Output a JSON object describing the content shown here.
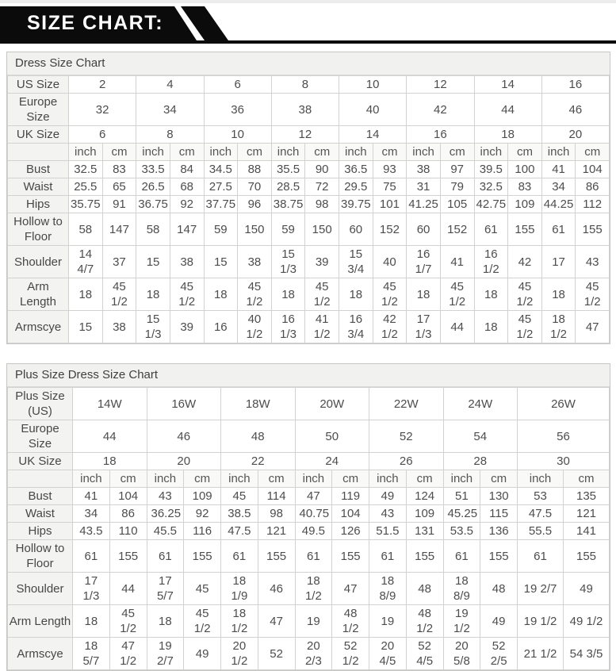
{
  "banner": {
    "title": "SIZE CHART:"
  },
  "colors": {
    "banner_bg": "#0b0b0b",
    "banner_text": "#ffffff",
    "title_bar_bg": "#f1f1ef",
    "label_cell_bg": "#f3f3f1",
    "table_border": "#d2d2d0",
    "text": "#4d4d4d"
  },
  "tables": [
    {
      "title": "Dress Size Chart",
      "units": [
        "inch",
        "cm"
      ],
      "size_rows": [
        {
          "label": "US Size",
          "values": [
            "2",
            "4",
            "6",
            "8",
            "10",
            "12",
            "14",
            "16"
          ]
        },
        {
          "label": "Europe Size",
          "values": [
            "32",
            "34",
            "36",
            "38",
            "40",
            "42",
            "44",
            "46"
          ]
        },
        {
          "label": "UK Size",
          "values": [
            "6",
            "8",
            "10",
            "12",
            "14",
            "16",
            "18",
            "20"
          ]
        }
      ],
      "measure_rows": [
        {
          "label": "Bust",
          "values": [
            "32.5",
            "83",
            "33.5",
            "84",
            "34.5",
            "88",
            "35.5",
            "90",
            "36.5",
            "93",
            "38",
            "97",
            "39.5",
            "100",
            "41",
            "104"
          ]
        },
        {
          "label": "Waist",
          "values": [
            "25.5",
            "65",
            "26.5",
            "68",
            "27.5",
            "70",
            "28.5",
            "72",
            "29.5",
            "75",
            "31",
            "79",
            "32.5",
            "83",
            "34",
            "86"
          ]
        },
        {
          "label": "Hips",
          "values": [
            "35.75",
            "91",
            "36.75",
            "92",
            "37.75",
            "96",
            "38.75",
            "98",
            "39.75",
            "101",
            "41.25",
            "105",
            "42.75",
            "109",
            "44.25",
            "112"
          ]
        },
        {
          "label": "Hollow to Floor",
          "values": [
            "58",
            "147",
            "58",
            "147",
            "59",
            "150",
            "59",
            "150",
            "60",
            "152",
            "60",
            "152",
            "61",
            "155",
            "61",
            "155"
          ]
        },
        {
          "label": "Shoulder",
          "values": [
            "14 4/7",
            "37",
            "15",
            "38",
            "15",
            "38",
            "15 1/3",
            "39",
            "15 3/4",
            "40",
            "16 1/7",
            "41",
            "16 1/2",
            "42",
            "17",
            "43"
          ]
        },
        {
          "label": "Arm Length",
          "values": [
            "18",
            "45 1/2",
            "18",
            "45 1/2",
            "18",
            "45 1/2",
            "18",
            "45 1/2",
            "18",
            "45 1/2",
            "18",
            "45 1/2",
            "18",
            "45 1/2",
            "18",
            "45 1/2"
          ]
        },
        {
          "label": "Armscye",
          "values": [
            "15",
            "38",
            "15 1/3",
            "39",
            "16",
            "40 1/2",
            "16 1/3",
            "41 1/2",
            "16 3/4",
            "42 1/2",
            "17 1/3",
            "44",
            "18",
            "45 1/2",
            "18 1/2",
            "47"
          ]
        }
      ]
    },
    {
      "title": "Plus Size Dress Size Chart",
      "units": [
        "inch",
        "cm"
      ],
      "size_rows": [
        {
          "label": "Plus Size (US)",
          "values": [
            "14W",
            "16W",
            "18W",
            "20W",
            "22W",
            "24W",
            "26W"
          ]
        },
        {
          "label": "Europe Size",
          "values": [
            "44",
            "46",
            "48",
            "50",
            "52",
            "54",
            "56"
          ]
        },
        {
          "label": "UK Size",
          "values": [
            "18",
            "20",
            "22",
            "24",
            "26",
            "28",
            "30"
          ]
        }
      ],
      "measure_rows": [
        {
          "label": "Bust",
          "values": [
            "41",
            "104",
            "43",
            "109",
            "45",
            "114",
            "47",
            "119",
            "49",
            "124",
            "51",
            "130",
            "53",
            "135"
          ]
        },
        {
          "label": "Waist",
          "values": [
            "34",
            "86",
            "36.25",
            "92",
            "38.5",
            "98",
            "40.75",
            "104",
            "43",
            "109",
            "45.25",
            "115",
            "47.5",
            "121"
          ]
        },
        {
          "label": "Hips",
          "values": [
            "43.5",
            "110",
            "45.5",
            "116",
            "47.5",
            "121",
            "49.5",
            "126",
            "51.5",
            "131",
            "53.5",
            "136",
            "55.5",
            "141"
          ]
        },
        {
          "label": "Hollow to Floor",
          "values": [
            "61",
            "155",
            "61",
            "155",
            "61",
            "155",
            "61",
            "155",
            "61",
            "155",
            "61",
            "155",
            "61",
            "155"
          ]
        },
        {
          "label": "Shoulder",
          "values": [
            "17 1/3",
            "44",
            "17 5/7",
            "45",
            "18 1/9",
            "46",
            "18 1/2",
            "47",
            "18 8/9",
            "48",
            "18 8/9",
            "48",
            "19 2/7",
            "49"
          ]
        },
        {
          "label": "Arm Length",
          "values": [
            "18",
            "45 1/2",
            "18",
            "45 1/2",
            "18 1/2",
            "47",
            "19",
            "48 1/2",
            "19",
            "48 1/2",
            "19 1/2",
            "49",
            "19 1/2",
            "49 1/2"
          ]
        },
        {
          "label": "Armscye",
          "values": [
            "18 5/7",
            "47 1/2",
            "19 2/7",
            "49",
            "20 1/2",
            "52",
            "20 2/3",
            "52 1/2",
            "20 4/5",
            "52 4/5",
            "20 5/8",
            "52 2/5",
            "21 1/2",
            "54 3/5"
          ]
        }
      ]
    }
  ]
}
